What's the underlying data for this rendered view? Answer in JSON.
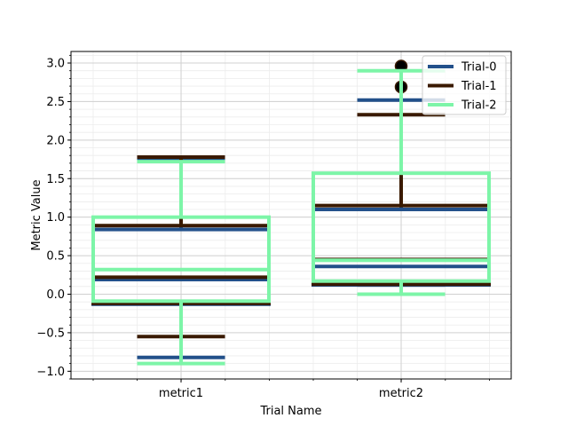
{
  "chart_data": {
    "type": "box",
    "xlabel": "Trial Name",
    "ylabel": "Metric Value",
    "ylim": [
      -1.1,
      3.15
    ],
    "yticks": [
      -1.0,
      -0.5,
      0.0,
      0.5,
      1.0,
      1.5,
      2.0,
      2.5,
      3.0
    ],
    "ytick_labels": [
      "−1.0",
      "−0.5",
      "0.0",
      "0.5",
      "1.0",
      "1.5",
      "2.0",
      "2.5",
      "3.0"
    ],
    "y_minor_step": 0.1,
    "categories": [
      "metric1",
      "metric2"
    ],
    "grid": true,
    "legend_position": "top-right",
    "series": [
      {
        "name": "Trial-0",
        "color": "#22508a",
        "boxes": [
          {
            "whislo": -0.82,
            "q1": -0.13,
            "median": 0.19,
            "q3": 0.84,
            "whishi": 1.75,
            "fliers": []
          },
          {
            "whislo": 0.12,
            "q1": 0.12,
            "median": 0.36,
            "q3": 1.1,
            "whishi": 2.52,
            "fliers": []
          }
        ]
      },
      {
        "name": "Trial-1",
        "color": "#3a1a00",
        "boxes": [
          {
            "whislo": -0.55,
            "q1": -0.12,
            "median": 0.22,
            "q3": 0.89,
            "whishi": 1.78,
            "fliers": []
          },
          {
            "whislo": 0.13,
            "q1": 0.13,
            "median": 0.45,
            "q3": 1.15,
            "whishi": 2.33,
            "fliers": [
              2.69,
              2.96
            ]
          }
        ]
      },
      {
        "name": "Trial-2",
        "color": "#7df5a8",
        "boxes": [
          {
            "whislo": -0.9,
            "q1": -0.09,
            "median": 0.32,
            "q3": 1.0,
            "whishi": 1.72,
            "fliers": []
          },
          {
            "whislo": 0.0,
            "q1": 0.17,
            "median": 0.44,
            "q3": 1.57,
            "whishi": 2.9,
            "fliers": []
          }
        ]
      }
    ]
  }
}
